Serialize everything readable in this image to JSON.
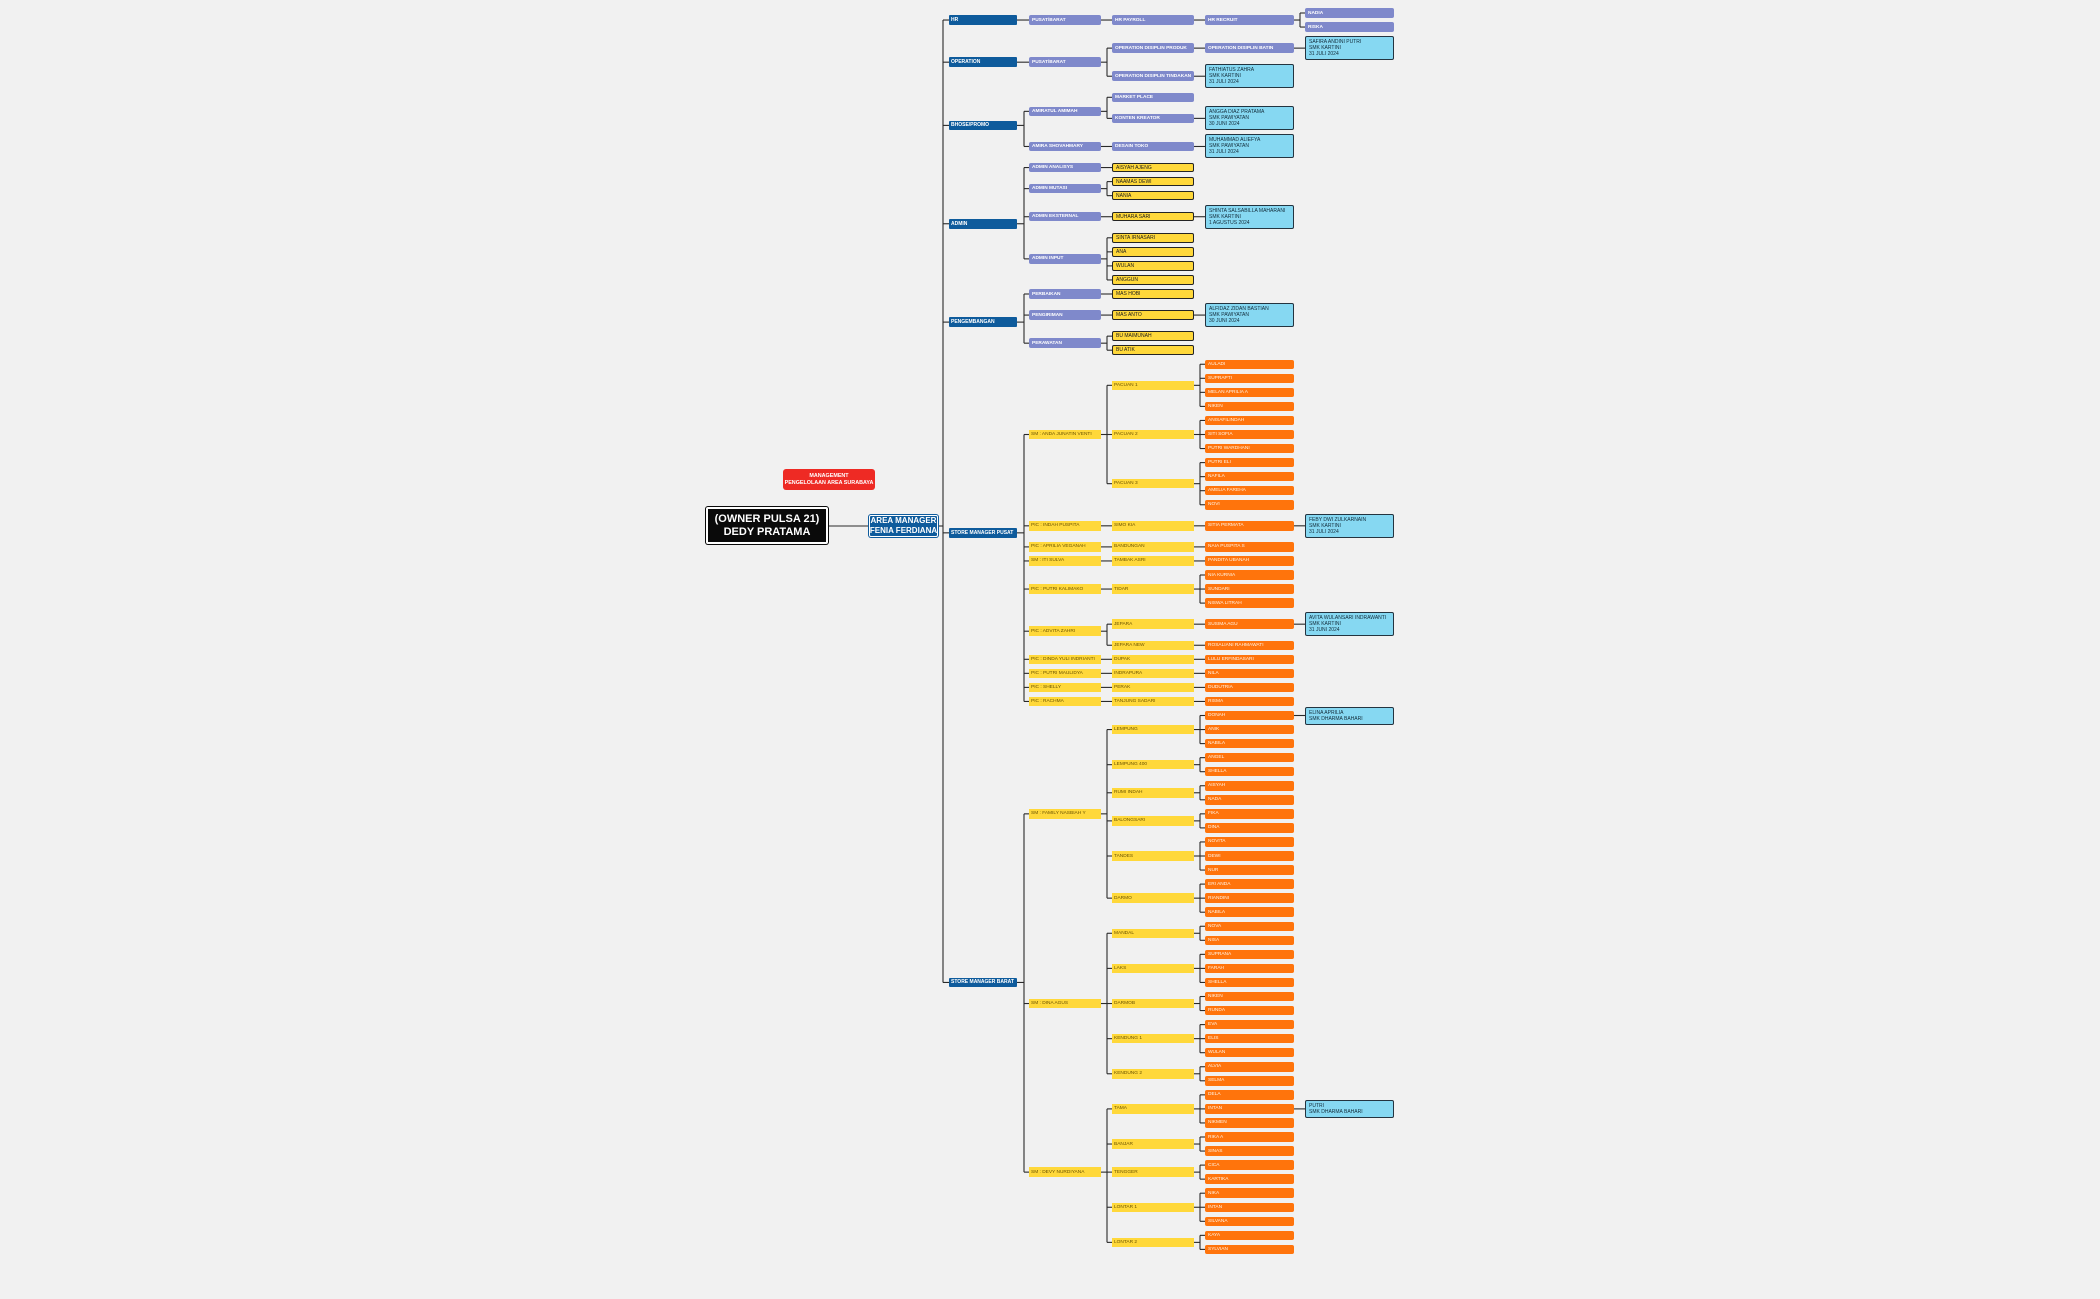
{
  "colors": {
    "root": "#0a0a0a",
    "management": "#ee2a24",
    "area_manager": "#0e5b9c",
    "department": "#0e5b9c",
    "role": "#7f89cb",
    "staff": "#ffd83a",
    "store": "#ffd83a",
    "crew": "#ff740c",
    "intern": "#86d8f2"
  },
  "root": {
    "line1": "(OWNER PULSA 21)",
    "line2": "DEDY PRATAMA"
  },
  "management": {
    "line1": "MANAGEMENT",
    "line2": "PENGELOLAAN AREA SURABAYA"
  },
  "area_manager": {
    "line1": "AREA MANAGER",
    "line2": "FENIA FERDIANA"
  },
  "departments": [
    {
      "label": "HR",
      "children": [
        {
          "label": "PUSAT/BARAT",
          "children": [
            {
              "label": "HR PAYROLL",
              "children": [
                {
                  "label": "HR RECRUIT",
                  "children": [
                    {
                      "label": "NADIA",
                      "children": []
                    },
                    {
                      "label": "RISKA",
                      "children": []
                    }
                  ]
                }
              ]
            }
          ]
        }
      ]
    },
    {
      "label": "OPERATION",
      "children": [
        {
          "label": "PUSAT/BARAT",
          "children": [
            {
              "label": "OPERATION DISIPLIN PRODUK",
              "children": [
                {
                  "label": "OPERATION DISIPLIN BATIN",
                  "children": [
                    {
                      "label": "SAFIRA ANDINI PUTRI\nSMK KARTINI\n31 JULI 2024",
                      "children": []
                    }
                  ]
                }
              ]
            },
            {
              "label": "OPERATION DISIPLIN TINDAKAN",
              "children": [
                {
                  "label": "FATHIATUS ZAHRA\nSMK KARTINI\n31 JULI 2024",
                  "children": []
                }
              ]
            }
          ]
        }
      ]
    },
    {
      "label": "BHOSE/PROMO",
      "children": [
        {
          "label": "AMIRATUL AMIMAH",
          "children": [
            {
              "label": "MARKET PLACE",
              "children": []
            },
            {
              "label": "KONTEN KREATOR",
              "children": [
                {
                  "label": "ANGGA DIAZ PRATAMA\nSMK PAWIYATAN\n30 JUNI 2024",
                  "children": []
                }
              ]
            }
          ]
        },
        {
          "label": "AMIRA SHOVAHMARY",
          "children": [
            {
              "label": "DESAIN TOKO",
              "children": [
                {
                  "label": "MUHAMMAD ALIEFYA\nSMK PAWIYATAN\n31 JULI 2024",
                  "children": []
                }
              ]
            }
          ]
        }
      ]
    },
    {
      "label": "ADMIN",
      "children": [
        {
          "label": "ADMIN ANALISYS",
          "children": [
            {
              "label": "AISYAH AJENG",
              "children": []
            }
          ]
        },
        {
          "label": "ADMIN MUTASI",
          "children": [
            {
              "label": "NAAMAS DEWI",
              "children": []
            },
            {
              "label": "NANIA",
              "children": []
            }
          ]
        },
        {
          "label": "ADMIN EKSTERNAL",
          "children": [
            {
              "label": "MUHARA SARI",
              "children": [
                {
                  "label": "SHINTA SALSABILLA MAHARANI\nSMK KARTINI\n1 AGUSTUS 2024",
                  "children": []
                }
              ]
            }
          ]
        },
        {
          "label": "ADMIN INPUT",
          "children": [
            {
              "label": "SINTA IRNASARI",
              "children": []
            },
            {
              "label": "ANA",
              "children": []
            },
            {
              "label": "WULAN",
              "children": []
            },
            {
              "label": "ANGGUN",
              "children": []
            }
          ]
        }
      ]
    },
    {
      "label": "PENGEMBANGAN",
      "children": [
        {
          "label": "PERBAIKAN",
          "children": [
            {
              "label": "MAS HOBI",
              "children": []
            }
          ]
        },
        {
          "label": "PENGIRIMAN",
          "children": [
            {
              "label": "MAS ANTO",
              "children": [
                {
                  "label": "ALFIDAZ ZIDAN BASTIAN\nSMK PAWIYATAN\n30 JUNI 2024",
                  "children": []
                }
              ]
            }
          ]
        },
        {
          "label": "PERAWATAN",
          "children": [
            {
              "label": "BU MAIMUNAH",
              "children": []
            },
            {
              "label": "BU ATIK",
              "children": []
            }
          ]
        }
      ]
    },
    {
      "label": "STORE MANAGER   PUSAT",
      "children": [
        {
          "label": "SM : ANDA JUNATIN VENTI",
          "children": [
            {
              "label": "PACUAN 1",
              "children": [
                {
                  "label": "AULADI",
                  "children": []
                },
                {
                  "label": "SUPRAPTI",
                  "children": []
                },
                {
                  "label": "MELAN APRILIA A",
                  "children": []
                },
                {
                  "label": "NIKEN",
                  "children": []
                }
              ]
            },
            {
              "label": "PACUAN 2",
              "children": [
                {
                  "label": "ANISAFILINDAH",
                  "children": []
                },
                {
                  "label": "SITI SOFIA",
                  "children": []
                },
                {
                  "label": "PUTRI WARDHANI",
                  "children": []
                }
              ]
            },
            {
              "label": "PACUAN 3",
              "children": [
                {
                  "label": "PUTRI ELI",
                  "children": []
                },
                {
                  "label": "NAFILA",
                  "children": []
                },
                {
                  "label": "AMELIA FAREHA",
                  "children": []
                },
                {
                  "label": "NOVI",
                  "children": []
                }
              ]
            }
          ]
        },
        {
          "label": "PIC : INDAH PUSPITA",
          "children": [
            {
              "label": "SIMO KIA",
              "children": [
                {
                  "label": "SITIA PERMATA",
                  "children": [
                    {
                      "label": "FEBY DWI ZULKARNAIN\nSMK KARTINI\n31 JULI 2024",
                      "children": []
                    }
                  ]
                }
              ]
            }
          ]
        },
        {
          "label": "PIC : APRILIA VEGANAH",
          "children": [
            {
              "label": "BANDUNGAN",
              "children": [
                {
                  "label": "NAIA PUSPITA S",
                  "children": []
                }
              ]
            }
          ]
        },
        {
          "label": "SM : ITI SULVA",
          "children": [
            {
              "label": "TAMBAK ASRI",
              "children": [
                {
                  "label": "PANDITA UBANAH",
                  "children": []
                }
              ]
            }
          ]
        },
        {
          "label": "PIC : PUTRI KALIMAKO",
          "children": [
            {
              "label": "TIDAR",
              "children": [
                {
                  "label": "NIA KURNIA",
                  "children": []
                },
                {
                  "label": "SUNDARI",
                  "children": []
                },
                {
                  "label": "NISWA LITRAH",
                  "children": []
                }
              ]
            }
          ]
        },
        {
          "label": "PIC : ADVITA ZAHRI",
          "children": [
            {
              "label": "JEPARA",
              "children": [
                {
                  "label": "SUSIMA AGU",
                  "children": [
                    {
                      "label": "AVITA WULANSARI INDRAWANTI\nSMK KARTINI\n31 JUNI 2024",
                      "children": []
                    }
                  ]
                }
              ]
            },
            {
              "label": "JEPARA NEW",
              "children": [
                {
                  "label": "ROSALIANI RAHMAWATI",
                  "children": []
                }
              ]
            }
          ]
        },
        {
          "label": "PIC : DINDA YULI INDRIANTI",
          "children": [
            {
              "label": "DUPAK",
              "children": [
                {
                  "label": "LULU ERFINDASARI",
                  "children": []
                }
              ]
            }
          ]
        },
        {
          "label": "PIC : PUTRI MAULIDYA",
          "children": [
            {
              "label": "INDRAPURA",
              "children": [
                {
                  "label": "NILA",
                  "children": []
                }
              ]
            }
          ]
        },
        {
          "label": "PIC : SHELLY",
          "children": [
            {
              "label": "PERAK",
              "children": [
                {
                  "label": "DUDUTRIA",
                  "children": []
                }
              ]
            }
          ]
        },
        {
          "label": "PIC : RACHMA",
          "children": [
            {
              "label": "TANJUNG SADARI",
              "children": [
                {
                  "label": "RISMA",
                  "children": []
                }
              ]
            }
          ]
        }
      ]
    },
    {
      "label": "STORE MANAGER BARAT",
      "children": [
        {
          "label": "SM : FAMILY NASBIAH Y",
          "children": [
            {
              "label": "LEMPUNG",
              "children": [
                {
                  "label": "DONAH",
                  "children": [
                    {
                      "label": "ELINA APRILIA\nSMK DHARMA BAHARI",
                      "children": []
                    }
                  ]
                },
                {
                  "label": "ANIK",
                  "children": []
                },
                {
                  "label": "NABILA",
                  "children": []
                }
              ]
            },
            {
              "label": "LEMPUNG 400",
              "children": [
                {
                  "label": "ANGEL",
                  "children": []
                },
                {
                  "label": "SHELLA",
                  "children": []
                }
              ]
            },
            {
              "label": "RUMI INDAH",
              "children": [
                {
                  "label": "AISYAH",
                  "children": []
                },
                {
                  "label": "NADA",
                  "children": []
                }
              ]
            },
            {
              "label": "BALONGSARI",
              "children": [
                {
                  "label": "FIKA",
                  "children": []
                },
                {
                  "label": "DINA",
                  "children": []
                }
              ]
            },
            {
              "label": "TANDES",
              "children": [
                {
                  "label": "NOVITA",
                  "children": []
                },
                {
                  "label": "DEWI",
                  "children": []
                },
                {
                  "label": "NUR",
                  "children": []
                }
              ]
            },
            {
              "label": "DARMO",
              "children": [
                {
                  "label": "ERI ANDA",
                  "children": []
                },
                {
                  "label": "RIANDINI",
                  "children": []
                },
                {
                  "label": "NABILA",
                  "children": []
                }
              ]
            }
          ]
        },
        {
          "label": "SM : DINA AGUS",
          "children": [
            {
              "label": "MANDAL",
              "children": [
                {
                  "label": "NOVA",
                  "children": []
                },
                {
                  "label": "NISA",
                  "children": []
                }
              ]
            },
            {
              "label": "LAKS",
              "children": [
                {
                  "label": "SUPRANA",
                  "children": []
                },
                {
                  "label": "FARAH",
                  "children": []
                },
                {
                  "label": "SHELLA",
                  "children": []
                }
              ]
            },
            {
              "label": "DARMOB",
              "children": [
                {
                  "label": "NIKEN",
                  "children": []
                },
                {
                  "label": "RUNDA",
                  "children": []
                }
              ]
            },
            {
              "label": "KENDUNG 1",
              "children": [
                {
                  "label": "EVA",
                  "children": []
                },
                {
                  "label": "ELIS",
                  "children": []
                },
                {
                  "label": "WULAN",
                  "children": []
                }
              ]
            },
            {
              "label": "KENDUNG 2",
              "children": [
                {
                  "label": "ALVIA",
                  "children": []
                },
                {
                  "label": "SELMA",
                  "children": []
                }
              ]
            }
          ]
        },
        {
          "label": "SM : DEVY NURDIYANA",
          "children": [
            {
              "label": "TAMA",
              "children": [
                {
                  "label": "DELA",
                  "children": []
                },
                {
                  "label": "INTAN",
                  "children": [
                    {
                      "label": "PUTRI\nSMK DHARMA BAHARI",
                      "children": []
                    }
                  ]
                },
                {
                  "label": "NIKMEN",
                  "children": []
                }
              ]
            },
            {
              "label": "BANJAR",
              "children": [
                {
                  "label": "RIKA A",
                  "children": []
                },
                {
                  "label": "SINAS",
                  "children": []
                }
              ]
            },
            {
              "label": "TENGGER",
              "children": [
                {
                  "label": "CICA",
                  "children": []
                },
                {
                  "label": "KARTIKA",
                  "children": []
                }
              ]
            },
            {
              "label": "LONTAR 1",
              "children": [
                {
                  "label": "NIKA",
                  "children": []
                },
                {
                  "label": "INTAN",
                  "children": []
                },
                {
                  "label": "SILVANA",
                  "children": []
                }
              ]
            },
            {
              "label": "LONTAR 2",
              "children": [
                {
                  "label": "KAYA",
                  "children": []
                },
                {
                  "label": "SYLVIAN",
                  "children": []
                }
              ]
            }
          ]
        }
      ]
    }
  ]
}
